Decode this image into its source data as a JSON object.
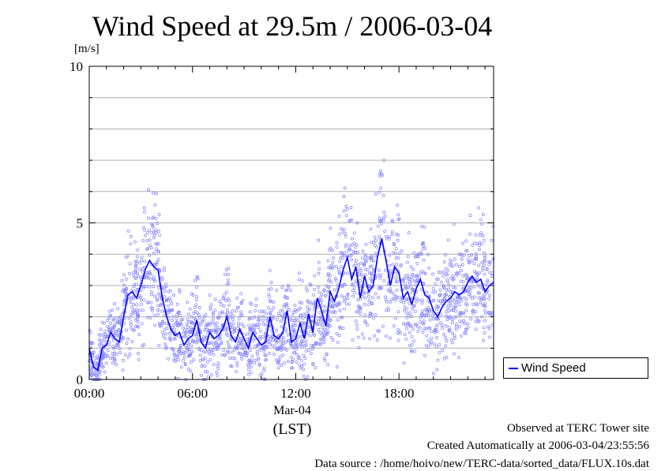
{
  "chart_data": {
    "type": "line",
    "title": "Wind Speed at 29.5m / 2006-03-04",
    "ylabel": "[m/s]",
    "xlabel": "(LST)",
    "date_label": "Mar-04",
    "ylim": [
      0,
      10
    ],
    "yticks": [
      "0",
      "5",
      "10"
    ],
    "xticks": [
      "00:00",
      "06:00",
      "12:00",
      "18:00"
    ],
    "xrange_hours": [
      0,
      23.5
    ],
    "grid": true,
    "legend_position": "right-bottom",
    "series": [
      {
        "name": "Wind Speed",
        "color": "#0000ff",
        "scatter_color": "#8080ff",
        "x_hours": [
          0.0,
          0.25,
          0.5,
          0.75,
          1.0,
          1.25,
          1.5,
          1.75,
          2.0,
          2.25,
          2.5,
          2.75,
          3.0,
          3.25,
          3.5,
          3.75,
          4.0,
          4.25,
          4.5,
          4.75,
          5.0,
          5.25,
          5.5,
          5.75,
          6.0,
          6.25,
          6.5,
          6.75,
          7.0,
          7.25,
          7.5,
          7.75,
          8.0,
          8.25,
          8.5,
          8.75,
          9.0,
          9.25,
          9.5,
          9.75,
          10.0,
          10.25,
          10.5,
          10.75,
          11.0,
          11.25,
          11.5,
          11.75,
          12.0,
          12.25,
          12.5,
          12.75,
          13.0,
          13.25,
          13.5,
          13.75,
          14.0,
          14.25,
          14.5,
          14.75,
          15.0,
          15.25,
          15.5,
          15.75,
          16.0,
          16.25,
          16.5,
          16.75,
          17.0,
          17.25,
          17.5,
          17.75,
          18.0,
          18.25,
          18.5,
          18.75,
          19.0,
          19.25,
          19.5,
          19.75,
          20.0,
          20.25,
          20.5,
          20.75,
          21.0,
          21.25,
          21.5,
          21.75,
          22.0,
          22.25,
          22.5,
          22.75,
          23.0,
          23.25,
          23.5
        ],
        "values": [
          1.0,
          0.4,
          0.3,
          1.0,
          1.1,
          1.5,
          1.3,
          1.2,
          2.0,
          2.7,
          2.8,
          2.6,
          3.0,
          3.5,
          3.8,
          3.6,
          3.5,
          2.6,
          2.0,
          1.6,
          1.4,
          1.5,
          1.1,
          1.3,
          1.4,
          1.9,
          1.2,
          1.0,
          1.5,
          1.3,
          1.4,
          1.6,
          2.0,
          1.4,
          1.2,
          1.6,
          1.3,
          1.0,
          1.5,
          1.3,
          1.1,
          1.2,
          2.0,
          1.4,
          1.3,
          1.5,
          2.2,
          1.2,
          1.3,
          1.8,
          1.3,
          2.1,
          1.5,
          2.6,
          2.2,
          1.7,
          2.8,
          2.5,
          2.9,
          3.5,
          3.9,
          3.2,
          3.6,
          2.6,
          3.3,
          2.8,
          3.0,
          3.9,
          4.5,
          3.8,
          3.0,
          3.6,
          3.4,
          2.6,
          2.8,
          2.4,
          2.9,
          3.2,
          2.7,
          2.6,
          2.2,
          2.0,
          2.3,
          2.5,
          2.6,
          2.8,
          2.7,
          2.8,
          3.1,
          3.3,
          3.1,
          3.2,
          2.8,
          3.0,
          3.1
        ]
      }
    ]
  },
  "footer": {
    "site": "Observed at TERC Tower site",
    "created": "Created Automatically at 2006-03-04/23:55:56",
    "source": "Data source : /home/hoivo/new/TERC-data/sorted_data/FLUX.10s.dat"
  }
}
